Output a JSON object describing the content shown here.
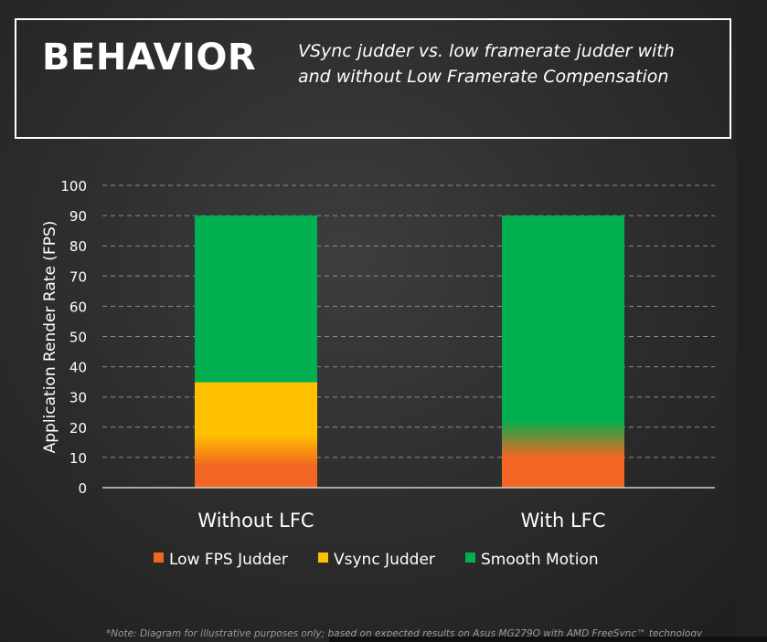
{
  "header": {
    "title": "BEHAVIOR",
    "subtitle": "VSync judder vs. low framerate judder with and without Low Framerate Compensation"
  },
  "footnote": "*Note: Diagram for illustrative purposes only; based on expected results on Asus MG279Q with AMD FreeSync™ technology",
  "colors": {
    "low_fps_judder": "#f26522",
    "vsync_judder": "#ffc000",
    "smooth_motion": "#00b050",
    "background": "#2b2b2b"
  },
  "chart_data": {
    "type": "bar",
    "stacked": true,
    "title": "",
    "xlabel": "",
    "ylabel": "Application Render Rate (FPS)",
    "ylim": [
      0,
      100
    ],
    "yticks": [
      0,
      10,
      20,
      30,
      40,
      50,
      60,
      70,
      80,
      90,
      100
    ],
    "grid": true,
    "legend_position": "bottom",
    "categories": [
      "Without LFC",
      "With LFC"
    ],
    "series": [
      {
        "name": "Low FPS Judder",
        "values": [
          10,
          10
        ]
      },
      {
        "name": "Vsync Judder",
        "values": [
          25,
          0
        ]
      },
      {
        "name": "Smooth Motion",
        "values": [
          55,
          80
        ]
      }
    ]
  }
}
